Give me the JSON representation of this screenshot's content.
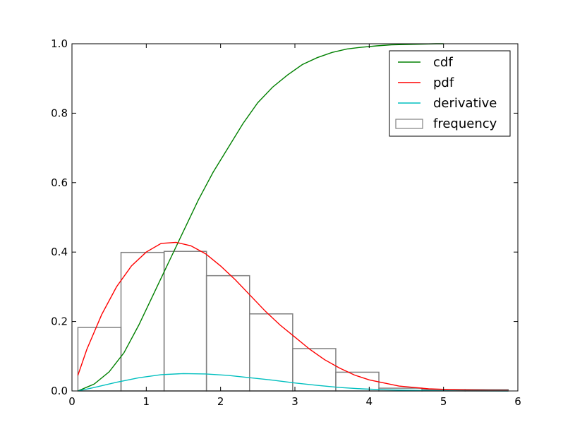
{
  "chart_data": {
    "type": "line",
    "title": "",
    "xlabel": "",
    "ylabel": "",
    "xlim": [
      0,
      6
    ],
    "ylim": [
      0,
      1.0
    ],
    "x_ticks": [
      "0",
      "1",
      "2",
      "3",
      "4",
      "5",
      "6"
    ],
    "y_ticks": [
      "0.0",
      "0.2",
      "0.4",
      "0.6",
      "0.8",
      "1.0"
    ],
    "grid": false,
    "legend_position": "top-right",
    "histogram": {
      "name": "frequency",
      "color": "#808080",
      "bins": [
        {
          "x0": 0.08,
          "x1": 0.66,
          "value": 0.183
        },
        {
          "x0": 0.66,
          "x1": 1.24,
          "value": 0.399
        },
        {
          "x0": 1.24,
          "x1": 1.81,
          "value": 0.402
        },
        {
          "x0": 1.81,
          "x1": 2.39,
          "value": 0.332
        },
        {
          "x0": 2.39,
          "x1": 2.97,
          "value": 0.222
        },
        {
          "x0": 2.97,
          "x1": 3.55,
          "value": 0.122
        },
        {
          "x0": 3.55,
          "x1": 4.13,
          "value": 0.054
        },
        {
          "x0": 4.13,
          "x1": 4.71,
          "value": 0.008
        },
        {
          "x0": 4.71,
          "x1": 5.29,
          "value": 0.004
        },
        {
          "x0": 5.29,
          "x1": 5.87,
          "value": 0.004
        }
      ]
    },
    "series": [
      {
        "name": "cdf",
        "color": "#008000",
        "x": [
          0.08,
          0.3,
          0.5,
          0.7,
          0.9,
          1.1,
          1.3,
          1.5,
          1.7,
          1.9,
          2.1,
          2.3,
          2.5,
          2.7,
          2.9,
          3.1,
          3.3,
          3.5,
          3.7,
          3.9,
          4.1,
          4.3,
          4.5,
          4.7,
          4.9,
          5.0
        ],
        "values": [
          0.0,
          0.02,
          0.055,
          0.11,
          0.19,
          0.28,
          0.37,
          0.46,
          0.55,
          0.63,
          0.7,
          0.77,
          0.83,
          0.875,
          0.91,
          0.94,
          0.96,
          0.975,
          0.985,
          0.99,
          0.994,
          0.997,
          0.998,
          0.999,
          1.0,
          1.0
        ]
      },
      {
        "name": "pdf",
        "color": "#ff0000",
        "x": [
          0.08,
          0.2,
          0.4,
          0.6,
          0.8,
          1.0,
          1.2,
          1.4,
          1.6,
          1.8,
          2.0,
          2.2,
          2.4,
          2.6,
          2.8,
          3.0,
          3.2,
          3.4,
          3.6,
          3.8,
          4.0,
          4.4,
          4.8,
          5.2,
          5.6,
          5.87
        ],
        "values": [
          0.045,
          0.12,
          0.22,
          0.3,
          0.36,
          0.4,
          0.425,
          0.428,
          0.418,
          0.395,
          0.36,
          0.32,
          0.275,
          0.23,
          0.19,
          0.155,
          0.12,
          0.09,
          0.066,
          0.046,
          0.032,
          0.014,
          0.006,
          0.003,
          0.0015,
          0.001
        ]
      },
      {
        "name": "derivative",
        "color": "#00bfbf",
        "x": [
          0.08,
          0.3,
          0.6,
          0.9,
          1.2,
          1.5,
          1.8,
          2.1,
          2.4,
          2.7,
          3.0,
          3.3,
          3.6,
          3.9,
          4.2,
          4.5,
          4.8,
          5.2,
          5.6,
          5.87
        ],
        "values": [
          0.0,
          0.01,
          0.025,
          0.038,
          0.047,
          0.05,
          0.049,
          0.045,
          0.038,
          0.031,
          0.023,
          0.016,
          0.01,
          0.006,
          0.0035,
          0.002,
          0.001,
          0.0005,
          0.0002,
          0.0001
        ]
      }
    ]
  }
}
